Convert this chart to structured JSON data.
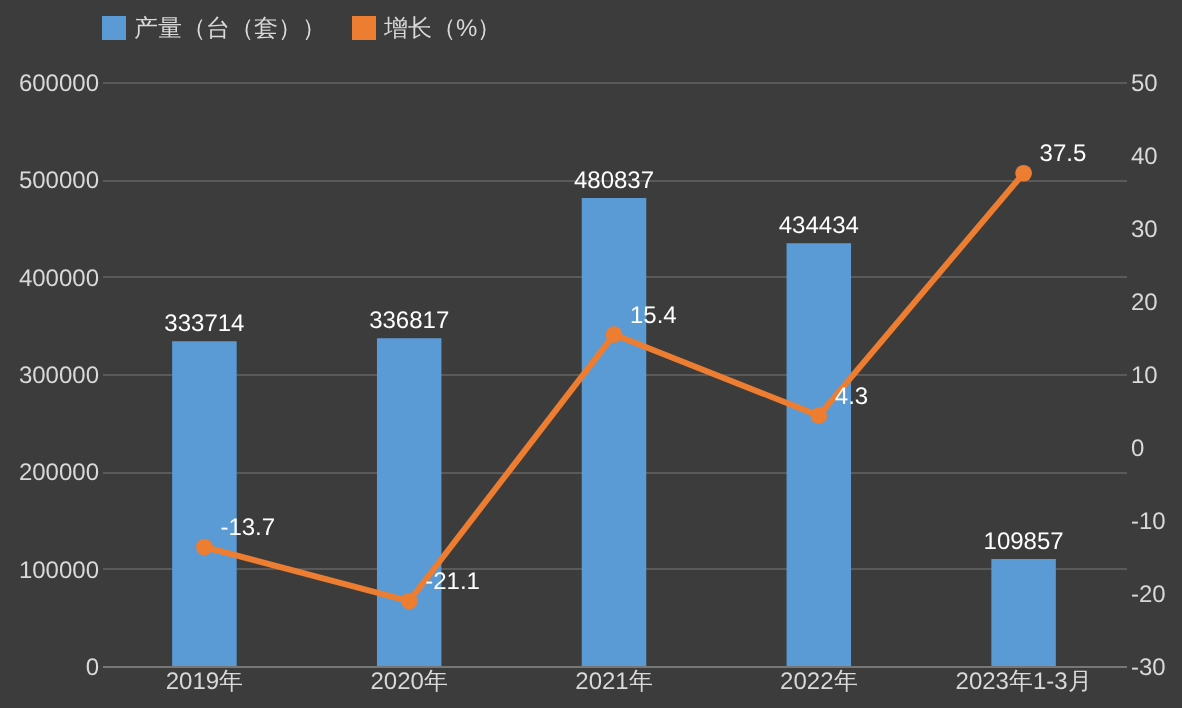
{
  "chart_data": {
    "type": "bar",
    "categories": [
      "2019年",
      "2020年",
      "2021年",
      "2022年",
      "2023年1-3月"
    ],
    "series": [
      {
        "name": "产量（台（套））",
        "color": "#5b9bd5",
        "values": [
          333714,
          336817,
          480837,
          434434,
          109857
        ]
      },
      {
        "name": "增长（%）",
        "type": "line",
        "axis": "y2",
        "color": "#ed7d31",
        "values": [
          -13.7,
          -21.1,
          15.4,
          4.3,
          37.5
        ]
      }
    ],
    "ylim": [
      0,
      600000
    ],
    "yticks": [
      0,
      100000,
      200000,
      300000,
      400000,
      500000,
      600000
    ],
    "y2lim": [
      -30,
      50
    ],
    "y2ticks": [
      -30,
      -20,
      -10,
      0,
      10,
      20,
      30,
      40,
      50
    ],
    "grid": "y",
    "legend": "top",
    "marker": "circle",
    "data_labels": true
  }
}
